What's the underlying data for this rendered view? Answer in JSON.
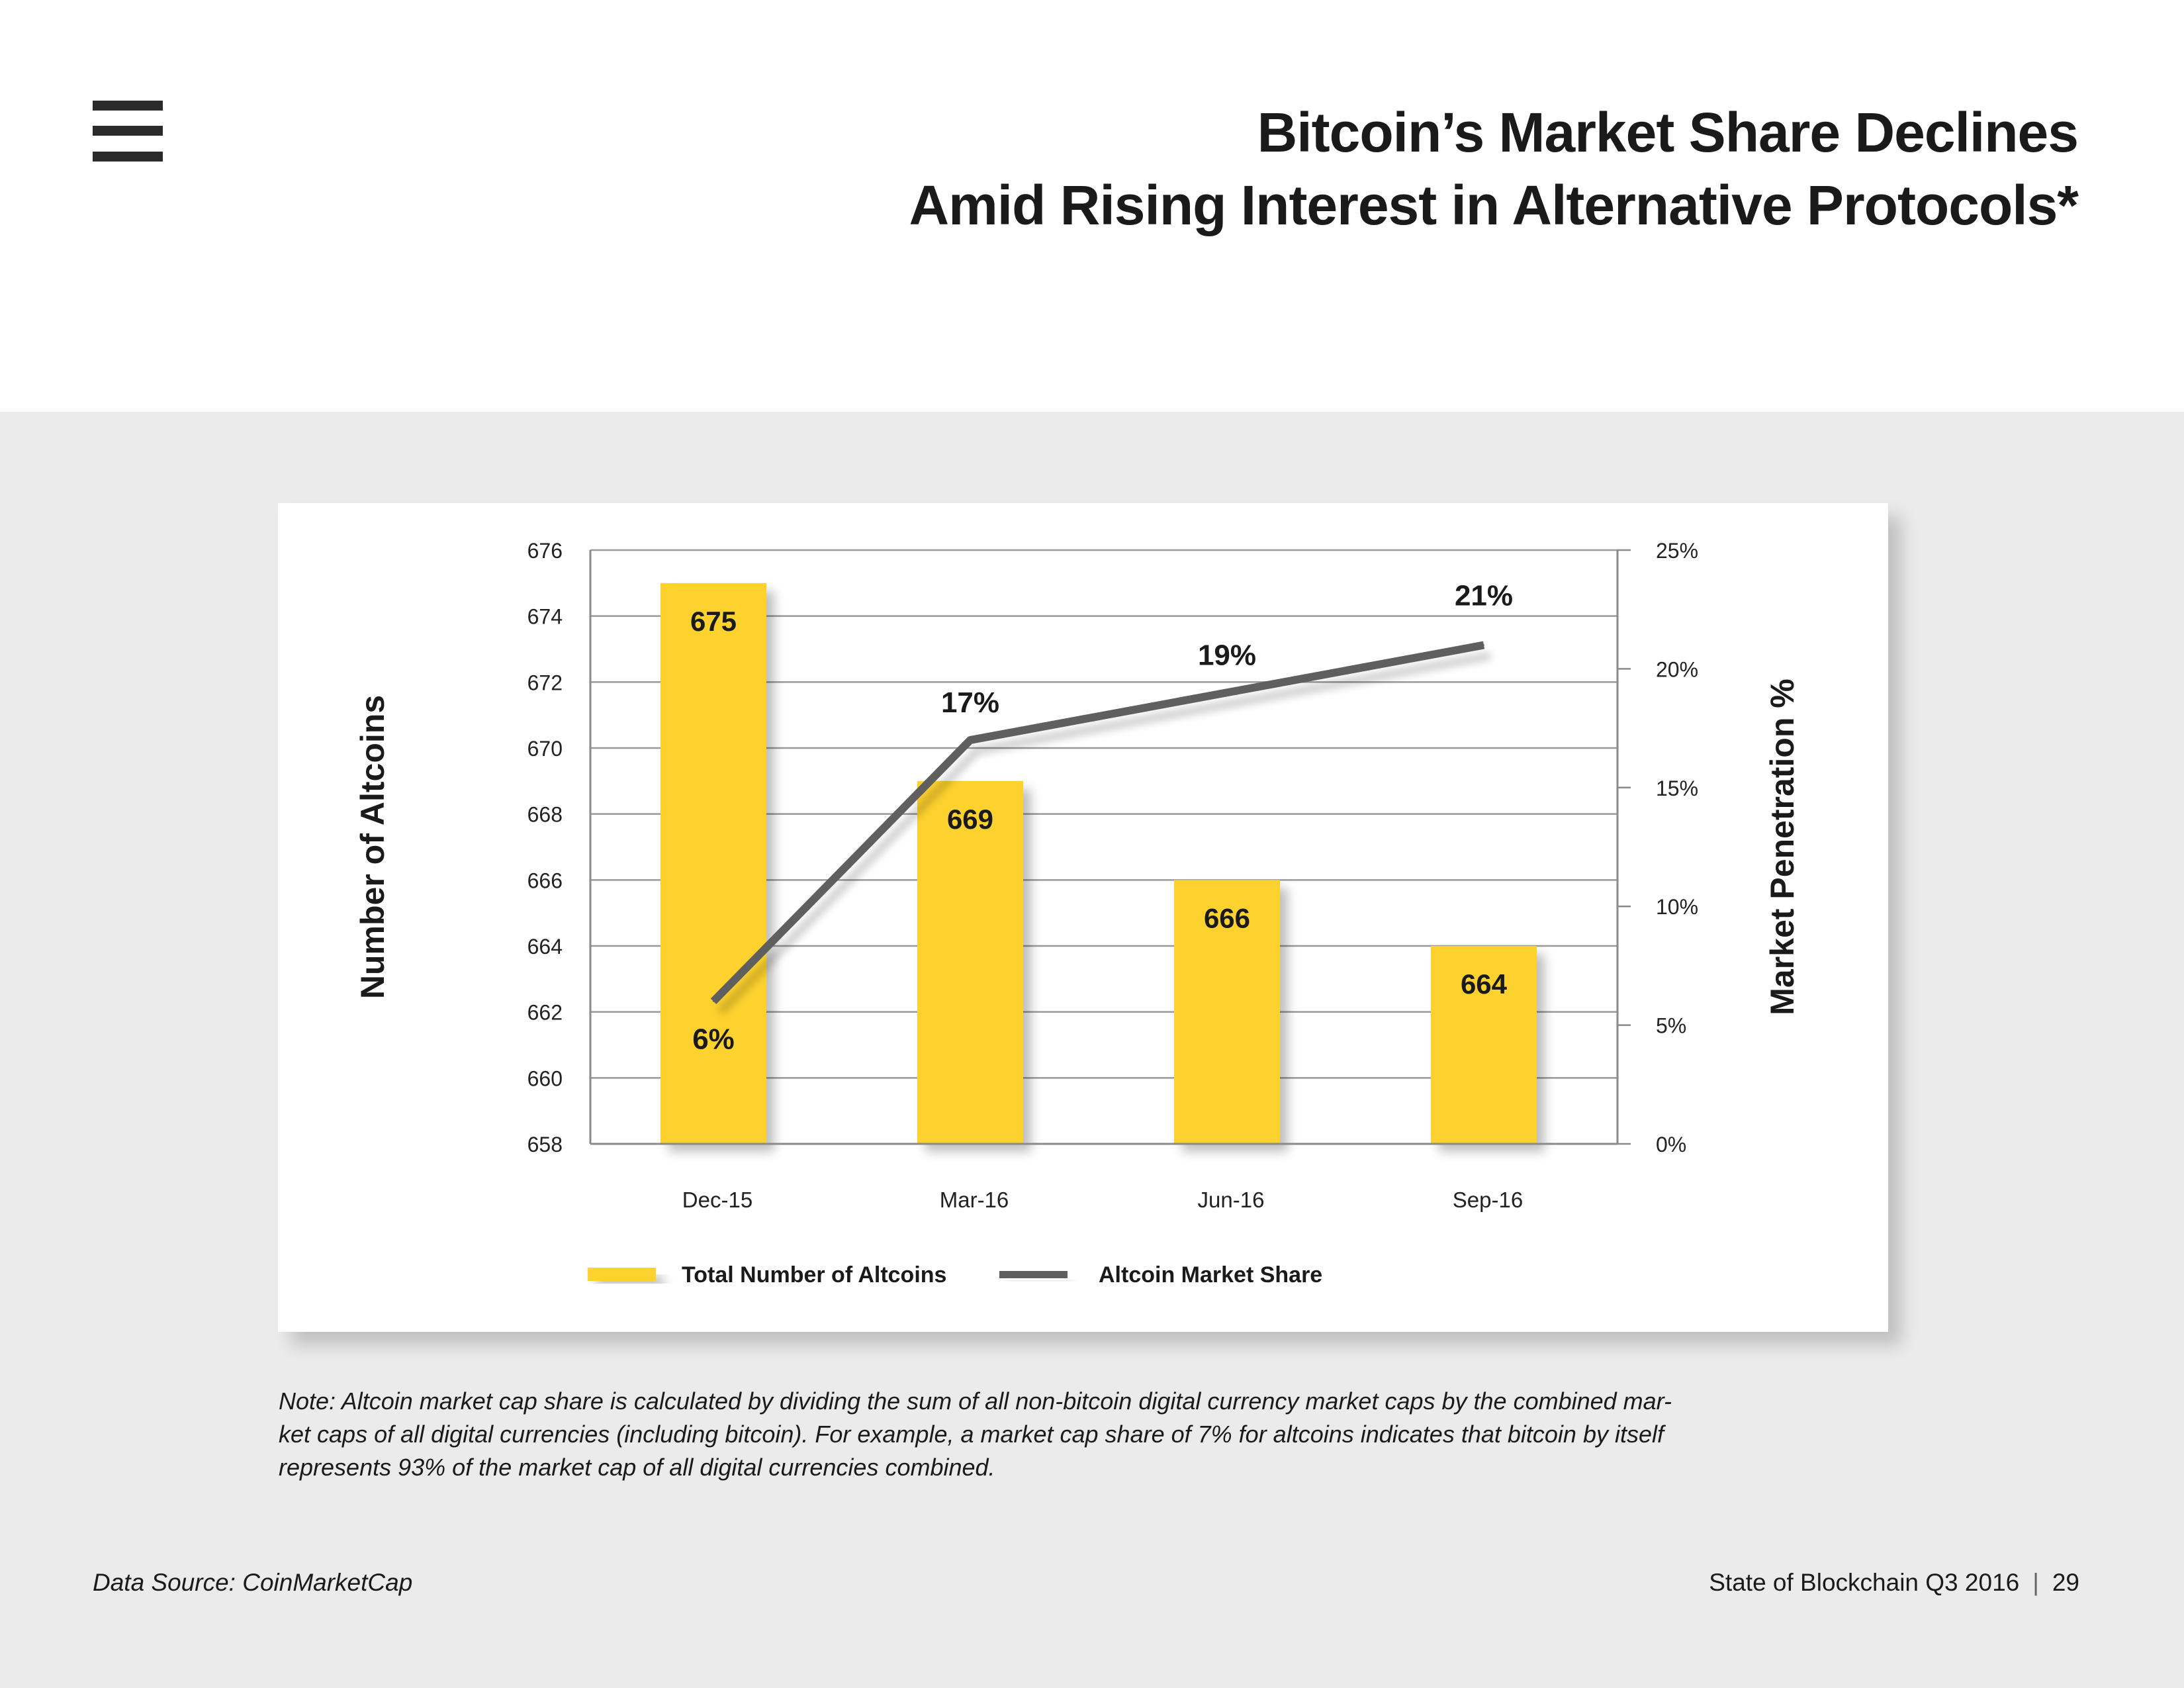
{
  "header": {
    "title_line1": "Bitcoin’s Market Share Declines",
    "title_line2": "Amid Rising Interest in Alternative Protocols*"
  },
  "chart_data": {
    "type": "bar+line",
    "categories": [
      "Dec-15",
      "Mar-16",
      "Jun-16",
      "Sep-16"
    ],
    "series": [
      {
        "name": "Total Number of Altcoins",
        "type": "bar",
        "axis": "left",
        "values": [
          675,
          669,
          666,
          664
        ],
        "labels": [
          "675",
          "669",
          "666",
          "664"
        ],
        "color": "#FDD22E"
      },
      {
        "name": "Altcoin Market Share",
        "type": "line",
        "axis": "right",
        "values": [
          6,
          17,
          19,
          21
        ],
        "labels": [
          "6%",
          "17%",
          "19%",
          "21%"
        ],
        "color": "#5e5e5e"
      }
    ],
    "ylabel": "Number of Altcoins",
    "ylabel_right": "Market Penetration %",
    "ylim": [
      658,
      676
    ],
    "ylim_right": [
      0,
      25
    ],
    "yticks": [
      "658",
      "660",
      "662",
      "664",
      "666",
      "668",
      "670",
      "672",
      "674",
      "676"
    ],
    "yticks_right": [
      "0%",
      "5%",
      "10%",
      "15%",
      "20%",
      "25%"
    ],
    "legend_position": "bottom",
    "grid": true
  },
  "note": "Note: Altcoin market cap share is calculated by dividing the sum of all non-bitcoin digital currency market caps by the combined mar-",
  "note_line2": "ket caps of all digital currencies (including bitcoin). For example, a market cap share of 7% for altcoins indicates that bitcoin by itself",
  "note_line3": "represents 93% of the market cap of all digital currencies combined.",
  "footer": {
    "source": "Data Source: CoinMarketCap",
    "report": "State of Blockchain Q3 2016",
    "separator": "|",
    "page": "29"
  }
}
